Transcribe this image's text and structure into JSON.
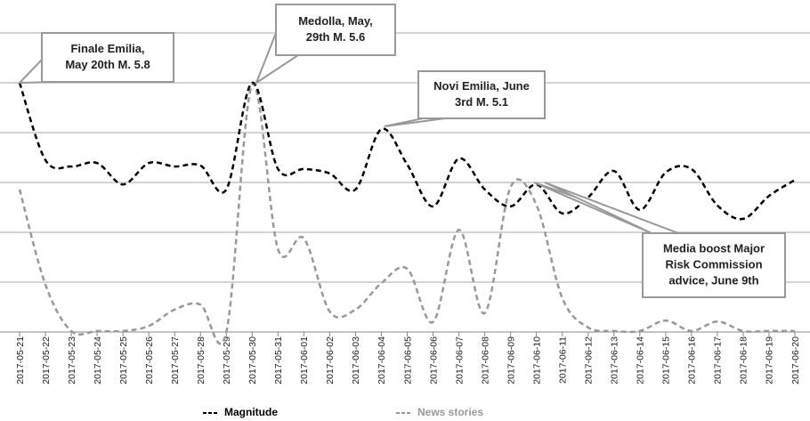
{
  "chart_data": {
    "type": "line",
    "categories": [
      "2017-05-21",
      "2017-05-22",
      "2017-05-23",
      "2017-05-24",
      "2017-05-25",
      "2017-05-26",
      "2017-05-27",
      "2017-05-28",
      "2017-05-29",
      "2017-05-30",
      "2017-05-31",
      "2017-06-01",
      "2017-06-02",
      "2017-06-03",
      "2017-06-04",
      "2017-06-05",
      "2017-06-06",
      "2017-06-07",
      "2017-06-08",
      "2017-06-09",
      "2017-06-10",
      "2017-06-11",
      "2017-06-12",
      "2017-06-13",
      "2017-06-14",
      "2017-06-15",
      "2017-06-16",
      "2017-06-17",
      "2017-06-18",
      "2017-06-19",
      "2017-06-20"
    ],
    "series": [
      {
        "name": "Magnitude",
        "color": "#000000",
        "values": [
          5.0,
          3.45,
          3.32,
          3.39,
          2.96,
          3.39,
          3.32,
          3.34,
          2.86,
          5.0,
          3.27,
          3.27,
          3.18,
          2.86,
          4.07,
          3.36,
          2.52,
          3.48,
          2.86,
          2.52,
          2.96,
          2.38,
          2.7,
          3.23,
          2.45,
          3.2,
          3.27,
          2.54,
          2.27,
          2.73,
          3.05
        ]
      },
      {
        "name": "News stories",
        "color": "#999999",
        "values": [
          2.86,
          0.95,
          0.02,
          0.02,
          0.02,
          0.12,
          0.45,
          0.55,
          0,
          4.96,
          1.66,
          1.88,
          0.41,
          0.45,
          0.98,
          1.27,
          0.2,
          2.05,
          0.38,
          2.91,
          2.55,
          0.68,
          0.09,
          0.02,
          0.02,
          0.23,
          0.02,
          0.21,
          0.02,
          0.02,
          0.02
        ]
      }
    ],
    "ylim": [
      0,
      6
    ],
    "yticks": [
      0,
      1,
      2,
      3,
      4,
      5,
      6
    ],
    "grid": true,
    "legend": "bottom",
    "annotations": [
      {
        "lines": [
          "Finale Emilia,",
          "May 20th M. 5.8"
        ]
      },
      {
        "lines": [
          "Medolla, May,",
          "29th M. 5.6"
        ]
      },
      {
        "lines": [
          "Novi Emilia, June",
          "3rd M. 5.1"
        ]
      },
      {
        "lines": [
          "Media boost Major",
          "Risk Commission",
          "advice, June 9th"
        ]
      }
    ]
  }
}
